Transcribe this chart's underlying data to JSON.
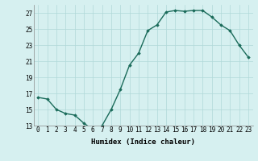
{
  "x": [
    0,
    1,
    2,
    3,
    4,
    5,
    6,
    7,
    8,
    9,
    10,
    11,
    12,
    13,
    14,
    15,
    16,
    17,
    18,
    19,
    20,
    21,
    22,
    23
  ],
  "y": [
    16.5,
    16.3,
    15.0,
    14.5,
    14.3,
    13.3,
    12.5,
    13.0,
    15.0,
    17.5,
    20.5,
    22.0,
    24.8,
    25.5,
    27.1,
    27.3,
    27.2,
    27.3,
    27.3,
    26.5,
    25.5,
    24.8,
    23.0,
    21.5
  ],
  "line_color": "#1a6b5a",
  "marker": "D",
  "marker_size": 1.8,
  "bg_color": "#d6f0f0",
  "grid_color": "#b0d8d8",
  "xlabel": "Humidex (Indice chaleur)",
  "ylim": [
    13,
    28
  ],
  "xlim": [
    -0.5,
    23.5
  ],
  "yticks": [
    13,
    15,
    17,
    19,
    21,
    23,
    25,
    27
  ],
  "xticks": [
    0,
    1,
    2,
    3,
    4,
    5,
    6,
    7,
    8,
    9,
    10,
    11,
    12,
    13,
    14,
    15,
    16,
    17,
    18,
    19,
    20,
    21,
    22,
    23
  ],
  "xlabel_fontsize": 6.5,
  "tick_fontsize": 5.5,
  "line_width": 1.0
}
